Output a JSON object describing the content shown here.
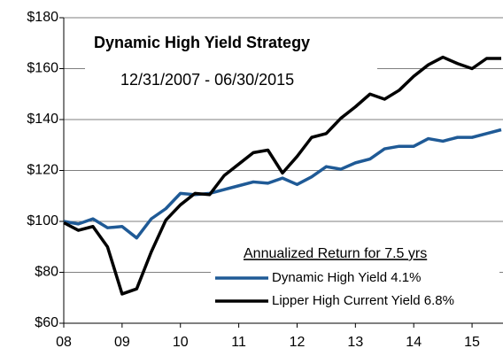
{
  "chart_data": {
    "type": "line",
    "title": "Dynamic High Yield Strategy",
    "subtitle": "12/31/2007 - 06/30/2015",
    "legend_title": "Annualized Return for 7.5 yrs",
    "x": [
      2008,
      2008.25,
      2008.5,
      2008.75,
      2009,
      2009.25,
      2009.5,
      2009.75,
      2010,
      2010.25,
      2010.5,
      2010.75,
      2011,
      2011.25,
      2011.5,
      2011.75,
      2012,
      2012.25,
      2012.5,
      2012.75,
      2013,
      2013.25,
      2013.5,
      2013.75,
      2014,
      2014.25,
      2014.5,
      2014.75,
      2015,
      2015.25,
      2015.5
    ],
    "series": [
      {
        "name": "Dynamic High Yield 4.1%",
        "color": "#1f5a96",
        "values": [
          100,
          99,
          101,
          97.5,
          98,
          93.5,
          101,
          105,
          111,
          110.5,
          111,
          112.5,
          114,
          115.5,
          115,
          117,
          114.5,
          117.5,
          121.5,
          120.5,
          123,
          124.5,
          128.5,
          129.5,
          129.5,
          132.5,
          131.5,
          133,
          133,
          134.5,
          136
        ]
      },
      {
        "name": "Lipper High Current Yield 6.8%",
        "color": "#000000",
        "values": [
          99.5,
          96.5,
          98,
          90,
          71.5,
          73.5,
          88,
          100.5,
          106.5,
          111,
          110.5,
          118,
          122.5,
          127,
          128,
          119,
          125.5,
          133,
          134.5,
          140.5,
          145,
          150,
          148,
          151.5,
          157,
          161.5,
          164.5,
          162,
          160,
          164,
          164
        ]
      }
    ],
    "xlim": [
      2008,
      2015.5
    ],
    "xticks": [
      {
        "value": 2008,
        "label": "08"
      },
      {
        "value": 2009,
        "label": "09"
      },
      {
        "value": 2010,
        "label": "10"
      },
      {
        "value": 2011,
        "label": "11"
      },
      {
        "value": 2012,
        "label": "12"
      },
      {
        "value": 2013,
        "label": "13"
      },
      {
        "value": 2014,
        "label": "14"
      },
      {
        "value": 2015,
        "label": "15"
      }
    ],
    "ylim": [
      60,
      180
    ],
    "yticks": [
      {
        "value": 60,
        "label": "$60"
      },
      {
        "value": 80,
        "label": "$80"
      },
      {
        "value": 100,
        "label": "$100"
      },
      {
        "value": 120,
        "label": "$120"
      },
      {
        "value": 140,
        "label": "$140"
      },
      {
        "value": 160,
        "label": "$160"
      },
      {
        "value": 180,
        "label": "$180"
      }
    ],
    "grid": true
  }
}
